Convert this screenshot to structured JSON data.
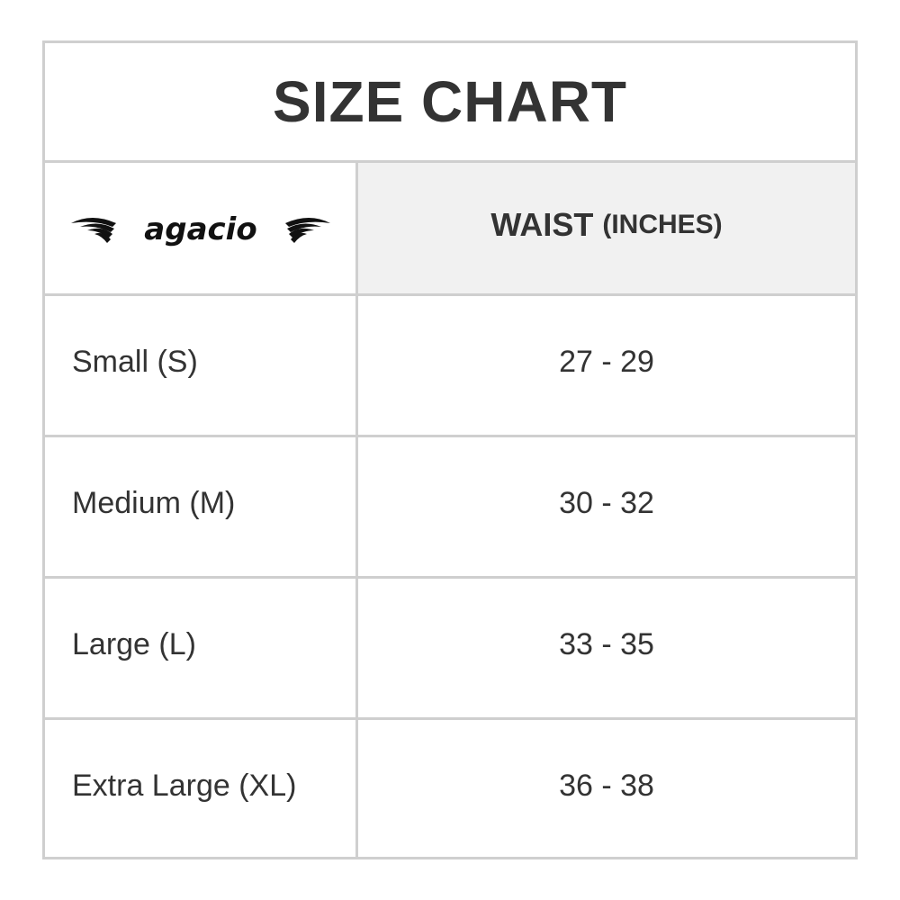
{
  "title": "SIZE CHART",
  "logo": {
    "text": "agacio"
  },
  "header": {
    "col2_main": "WAIST",
    "col2_unit": "(INCHES)"
  },
  "rows": [
    {
      "size": "Small (S)",
      "waist": "27 - 29"
    },
    {
      "size": "Medium (M)",
      "waist": "30 - 32"
    },
    {
      "size": "Large (L)",
      "waist": "33 - 35"
    },
    {
      "size": "Extra Large (XL)",
      "waist": "36 - 38"
    }
  ]
}
